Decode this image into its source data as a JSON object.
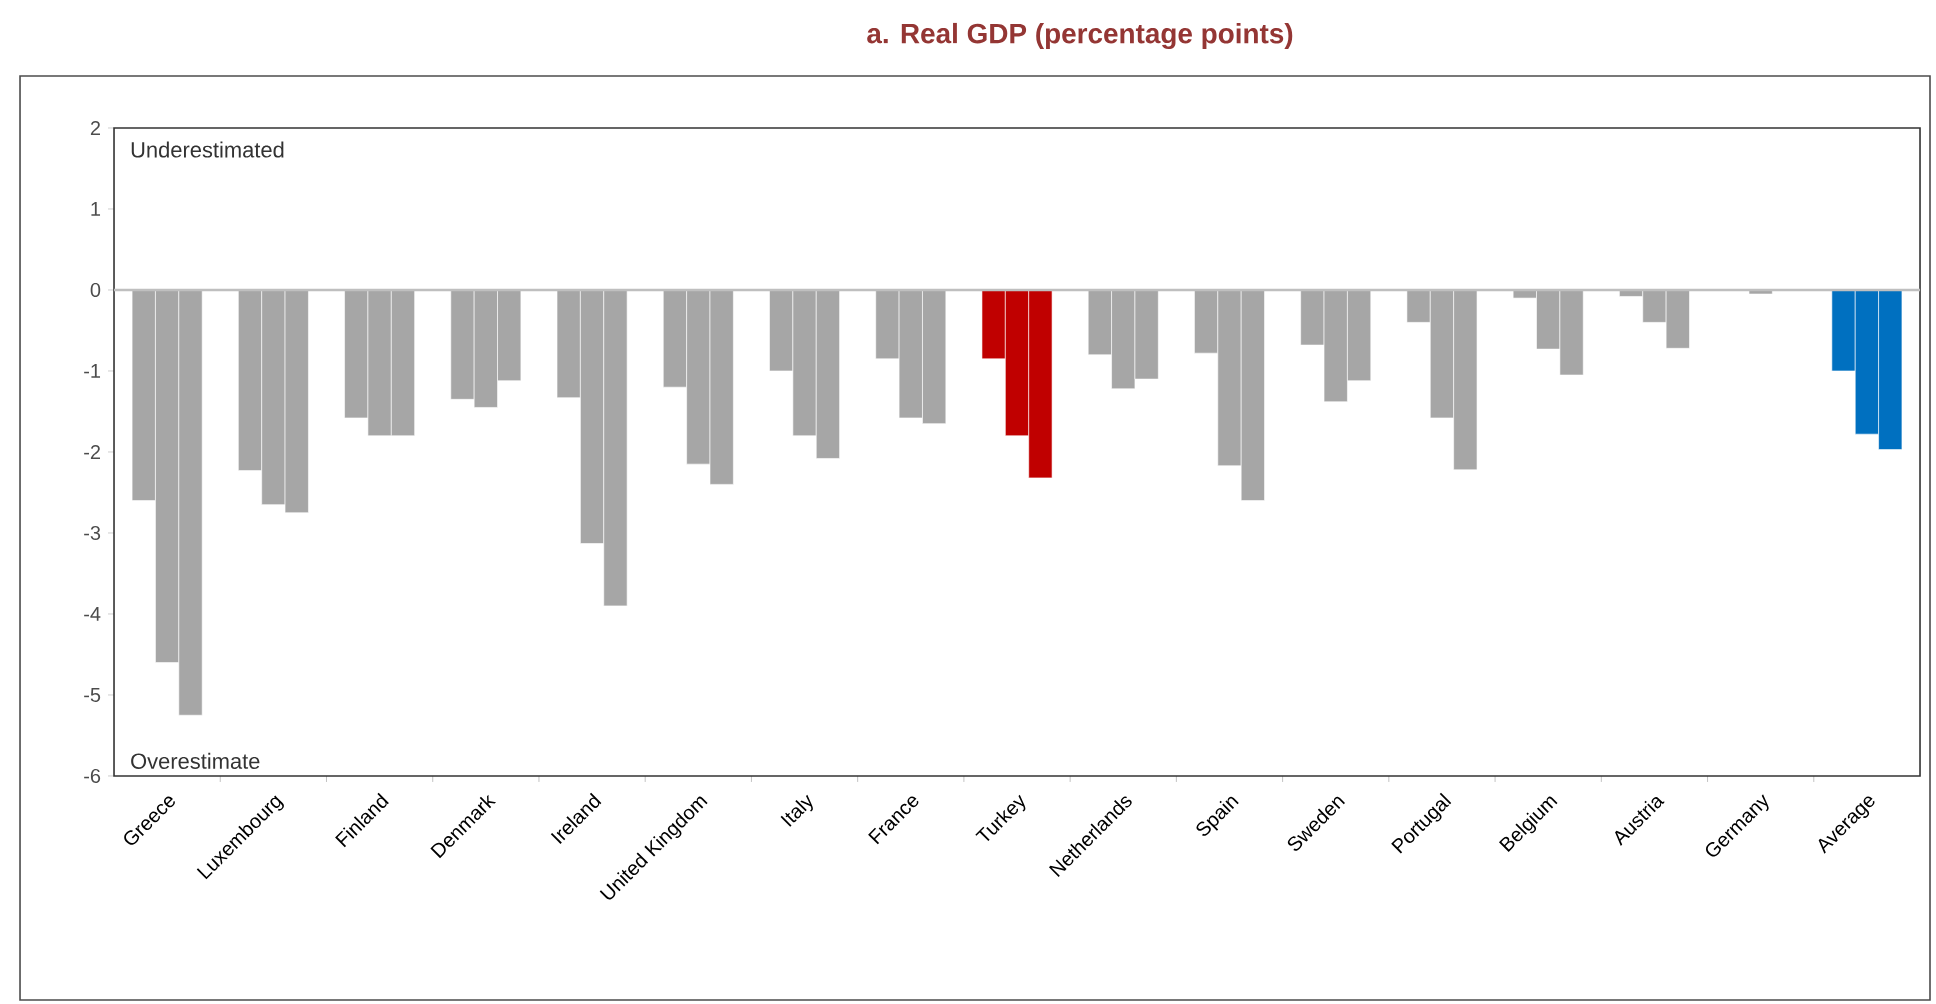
{
  "chart_data": {
    "type": "bar",
    "title": "a.    Real GDP (percentage points)",
    "categories": [
      "Greece",
      "Luxembourg",
      "Finland",
      "Denmark",
      "Ireland",
      "United Kingdom",
      "Italy",
      "France",
      "Turkey",
      "Netherlands",
      "Spain",
      "Sweden",
      "Portugal",
      "Belgium",
      "Austria",
      "Germany",
      "Average"
    ],
    "series": [
      {
        "colors": [
          "#a6a6a6",
          "#a6a6a6",
          "#a6a6a6",
          "#a6a6a6",
          "#a6a6a6",
          "#a6a6a6",
          "#a6a6a6",
          "#a6a6a6",
          "#c00000",
          "#a6a6a6",
          "#a6a6a6",
          "#a6a6a6",
          "#a6a6a6",
          "#a6a6a6",
          "#a6a6a6",
          "#a6a6a6",
          "#0070c0"
        ],
        "values": [
          -2.6,
          -2.23,
          -1.58,
          -1.35,
          -1.33,
          -1.2,
          -1.0,
          -0.85,
          -0.85,
          -0.8,
          -0.78,
          -0.68,
          -0.4,
          -0.1,
          -0.08,
          null,
          -1.0
        ]
      },
      {
        "colors": [
          "#a6a6a6",
          "#a6a6a6",
          "#a6a6a6",
          "#a6a6a6",
          "#a6a6a6",
          "#a6a6a6",
          "#a6a6a6",
          "#a6a6a6",
          "#c00000",
          "#a6a6a6",
          "#a6a6a6",
          "#a6a6a6",
          "#a6a6a6",
          "#a6a6a6",
          "#a6a6a6",
          "#a6a6a6",
          "#0070c0"
        ],
        "values": [
          -4.6,
          -2.65,
          -1.8,
          -1.45,
          -3.13,
          -2.15,
          -1.8,
          -1.58,
          -1.8,
          -1.22,
          -2.17,
          -1.38,
          -1.58,
          -0.73,
          -0.4,
          -0.05,
          -1.78
        ]
      },
      {
        "colors": [
          "#a6a6a6",
          "#a6a6a6",
          "#a6a6a6",
          "#a6a6a6",
          "#a6a6a6",
          "#a6a6a6",
          "#a6a6a6",
          "#a6a6a6",
          "#c00000",
          "#a6a6a6",
          "#a6a6a6",
          "#a6a6a6",
          "#a6a6a6",
          "#a6a6a6",
          "#a6a6a6",
          "#a6a6a6",
          "#0070c0"
        ],
        "values": [
          -5.25,
          -2.75,
          -1.8,
          -1.12,
          -3.9,
          -2.4,
          -2.08,
          -1.65,
          -2.32,
          -1.1,
          -2.6,
          -1.12,
          -2.22,
          -1.05,
          -0.72,
          null,
          -1.97
        ]
      }
    ],
    "ylim": [
      -6,
      2
    ],
    "yticks": [
      -6,
      -5,
      -4,
      -3,
      -2,
      -1,
      0,
      1,
      2
    ],
    "annotations": [
      "Underestimated",
      "Overestimate"
    ]
  }
}
